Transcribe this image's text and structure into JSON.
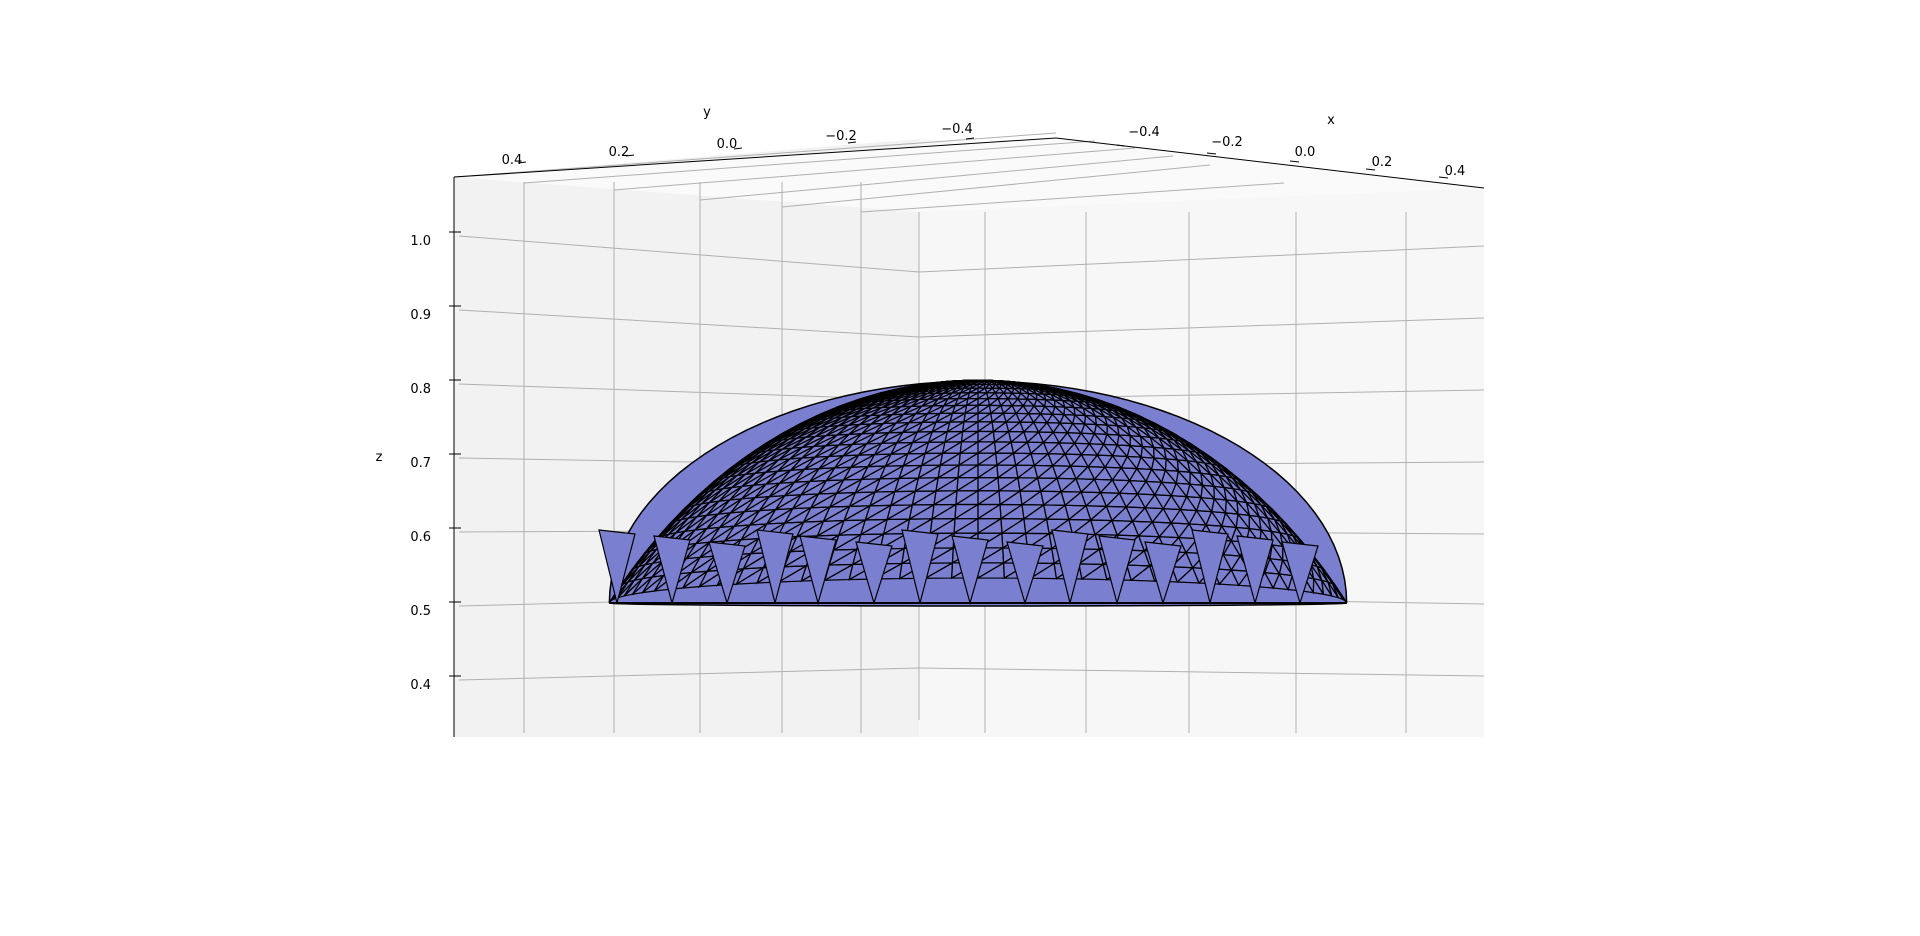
{
  "chart_data": {
    "type": "surface3d",
    "title": "",
    "surface": {
      "description": "triangulated dome z = sqrt(0.8^2 - x^2 - y^2) clipped at z >= 0.5",
      "sphere_radius": 0.8,
      "z_base": 0.5,
      "z_peak": 0.8,
      "face_color": "#7b7fcf",
      "edge_color": "#000000"
    },
    "axes": {
      "x": {
        "label": "x",
        "range": [
          -0.5,
          0.5
        ],
        "ticks": [
          "−0.4",
          "−0.2",
          "0.0",
          "0.2",
          "0.4"
        ]
      },
      "y": {
        "label": "y",
        "range": [
          -0.5,
          0.5
        ],
        "ticks": [
          "0.4",
          "0.2",
          "0.0",
          "−0.2",
          "−0.4"
        ]
      },
      "z": {
        "label": "z",
        "range": [
          0.32,
          1.08
        ],
        "ticks": [
          "1.0",
          "0.9",
          "0.8",
          "0.7",
          "0.6",
          "0.5",
          "0.4"
        ]
      }
    },
    "pane_colors": {
      "left": "#f2f2f2",
      "right": "#f7f7f7",
      "floor": "#fafafa"
    },
    "grid": true
  }
}
